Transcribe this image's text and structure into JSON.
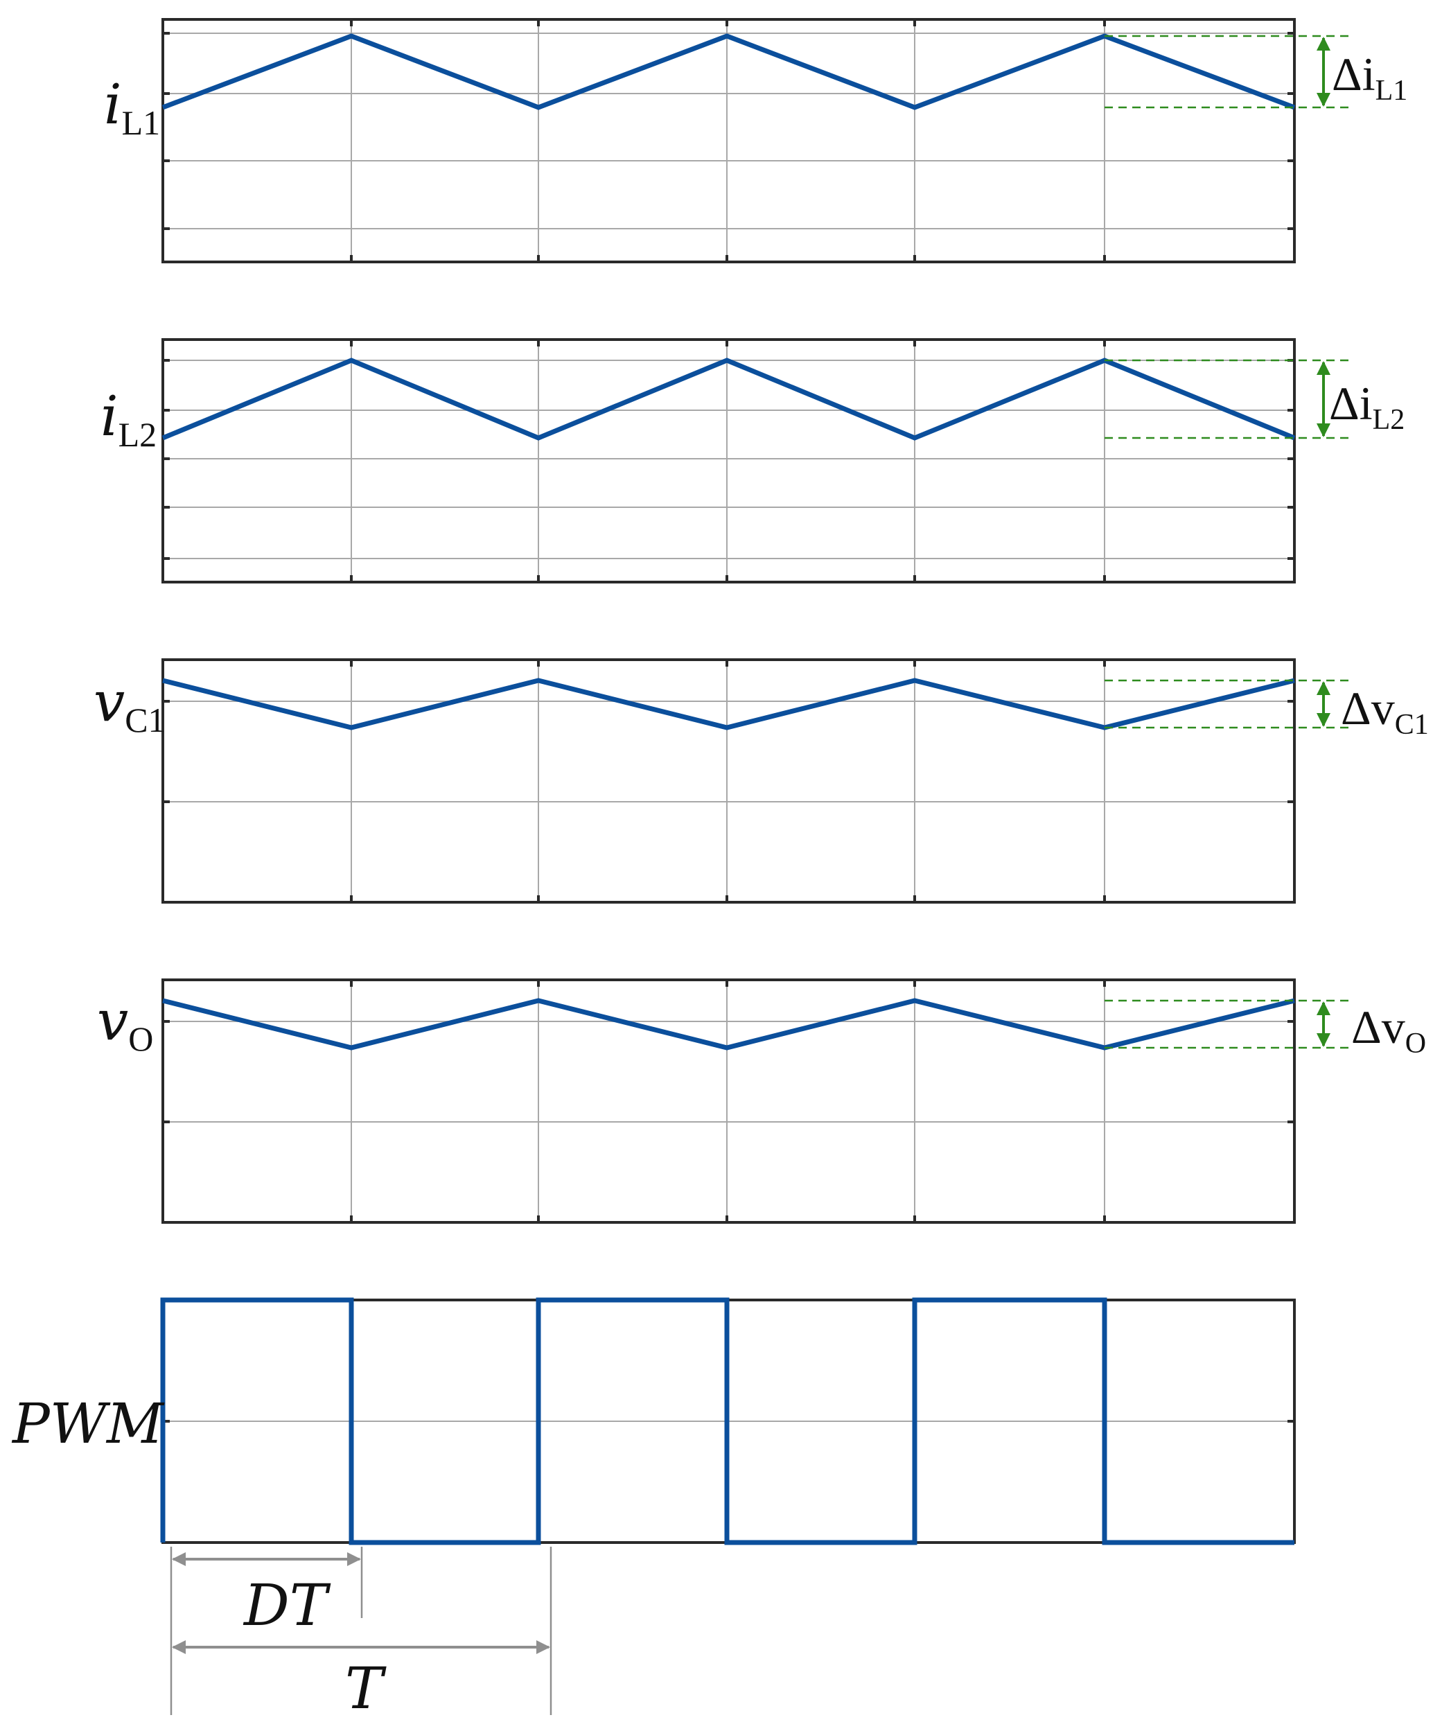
{
  "colors": {
    "waveform": "#0b4f9c",
    "grid": "#a8a8a8",
    "frame": "#2a2a2a",
    "ripple": "#2e8b1e",
    "dimension": "#8f8f8f",
    "text": "#111111"
  },
  "panels": [
    {
      "key": "iL1",
      "label": {
        "main": "i",
        "sub": "L1"
      },
      "delta": {
        "main": "Δi",
        "sub": "L1"
      },
      "waveform": {
        "type": "triangle",
        "start": "valley",
        "breakpoints": 7
      }
    },
    {
      "key": "iL2",
      "label": {
        "main": "i",
        "sub": "L2"
      },
      "delta": {
        "main": "Δi",
        "sub": "L2"
      },
      "waveform": {
        "type": "triangle",
        "start": "valley",
        "breakpoints": 7
      }
    },
    {
      "key": "vC1",
      "label": {
        "main": "v",
        "sub": "C1"
      },
      "delta": {
        "main": "Δv",
        "sub": "C1"
      },
      "waveform": {
        "type": "triangle",
        "start": "peak",
        "breakpoints": 7
      }
    },
    {
      "key": "vO",
      "label": {
        "main": "v",
        "sub": "O"
      },
      "delta": {
        "main": "Δv",
        "sub": "O"
      },
      "waveform": {
        "type": "triangle",
        "start": "peak",
        "breakpoints": 7
      }
    },
    {
      "key": "pwm",
      "label": {
        "main": "PWM",
        "sub": ""
      },
      "waveform": {
        "type": "square",
        "levels": [
          1,
          0,
          1,
          0,
          1,
          0
        ]
      }
    }
  ],
  "dimensions": {
    "dt_label": "DT",
    "t_label": "T"
  }
}
